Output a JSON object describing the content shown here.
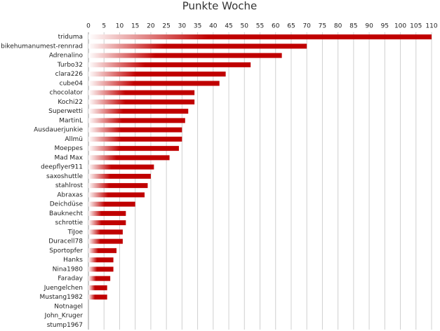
{
  "chart_data": {
    "type": "bar",
    "orientation": "horizontal",
    "title": "Punkte Woche",
    "categories": [
      "triduma",
      "bikehumanumest-rennrad",
      "Adrenalino",
      "Turbo32",
      "clara226",
      "cube04",
      "chocolator",
      "Kochi22",
      "Superwetti",
      "MartinL",
      "Ausdauerjunkie",
      "Allmü",
      "Moeppes",
      "Mad Max",
      "deepflyer911",
      "saxoshuttle",
      "stahlrost",
      "Abraxas",
      "Deichdüse",
      "Bauknecht",
      "schrottie",
      "TiJoe",
      "Duracell78",
      "Sportopfer",
      "Hanks",
      "Nina1980",
      "Faraday",
      "Juengelchen",
      "Mustang1982",
      "Notnagel",
      "John_Kruger",
      "stump1967"
    ],
    "values": [
      110,
      70,
      62,
      52,
      44,
      42,
      34,
      34,
      32,
      31,
      30,
      30,
      29,
      26,
      21,
      20,
      19,
      18,
      15,
      12,
      12,
      11,
      11,
      9,
      8,
      8,
      7,
      6,
      6,
      0,
      0,
      0
    ],
    "color": "#c00000",
    "xlim": [
      0,
      110
    ],
    "xticks": [
      0,
      5,
      10,
      15,
      20,
      25,
      30,
      35,
      40,
      45,
      50,
      55,
      60,
      65,
      70,
      75,
      80,
      85,
      90,
      95,
      100,
      105,
      110
    ],
    "grid": true
  }
}
